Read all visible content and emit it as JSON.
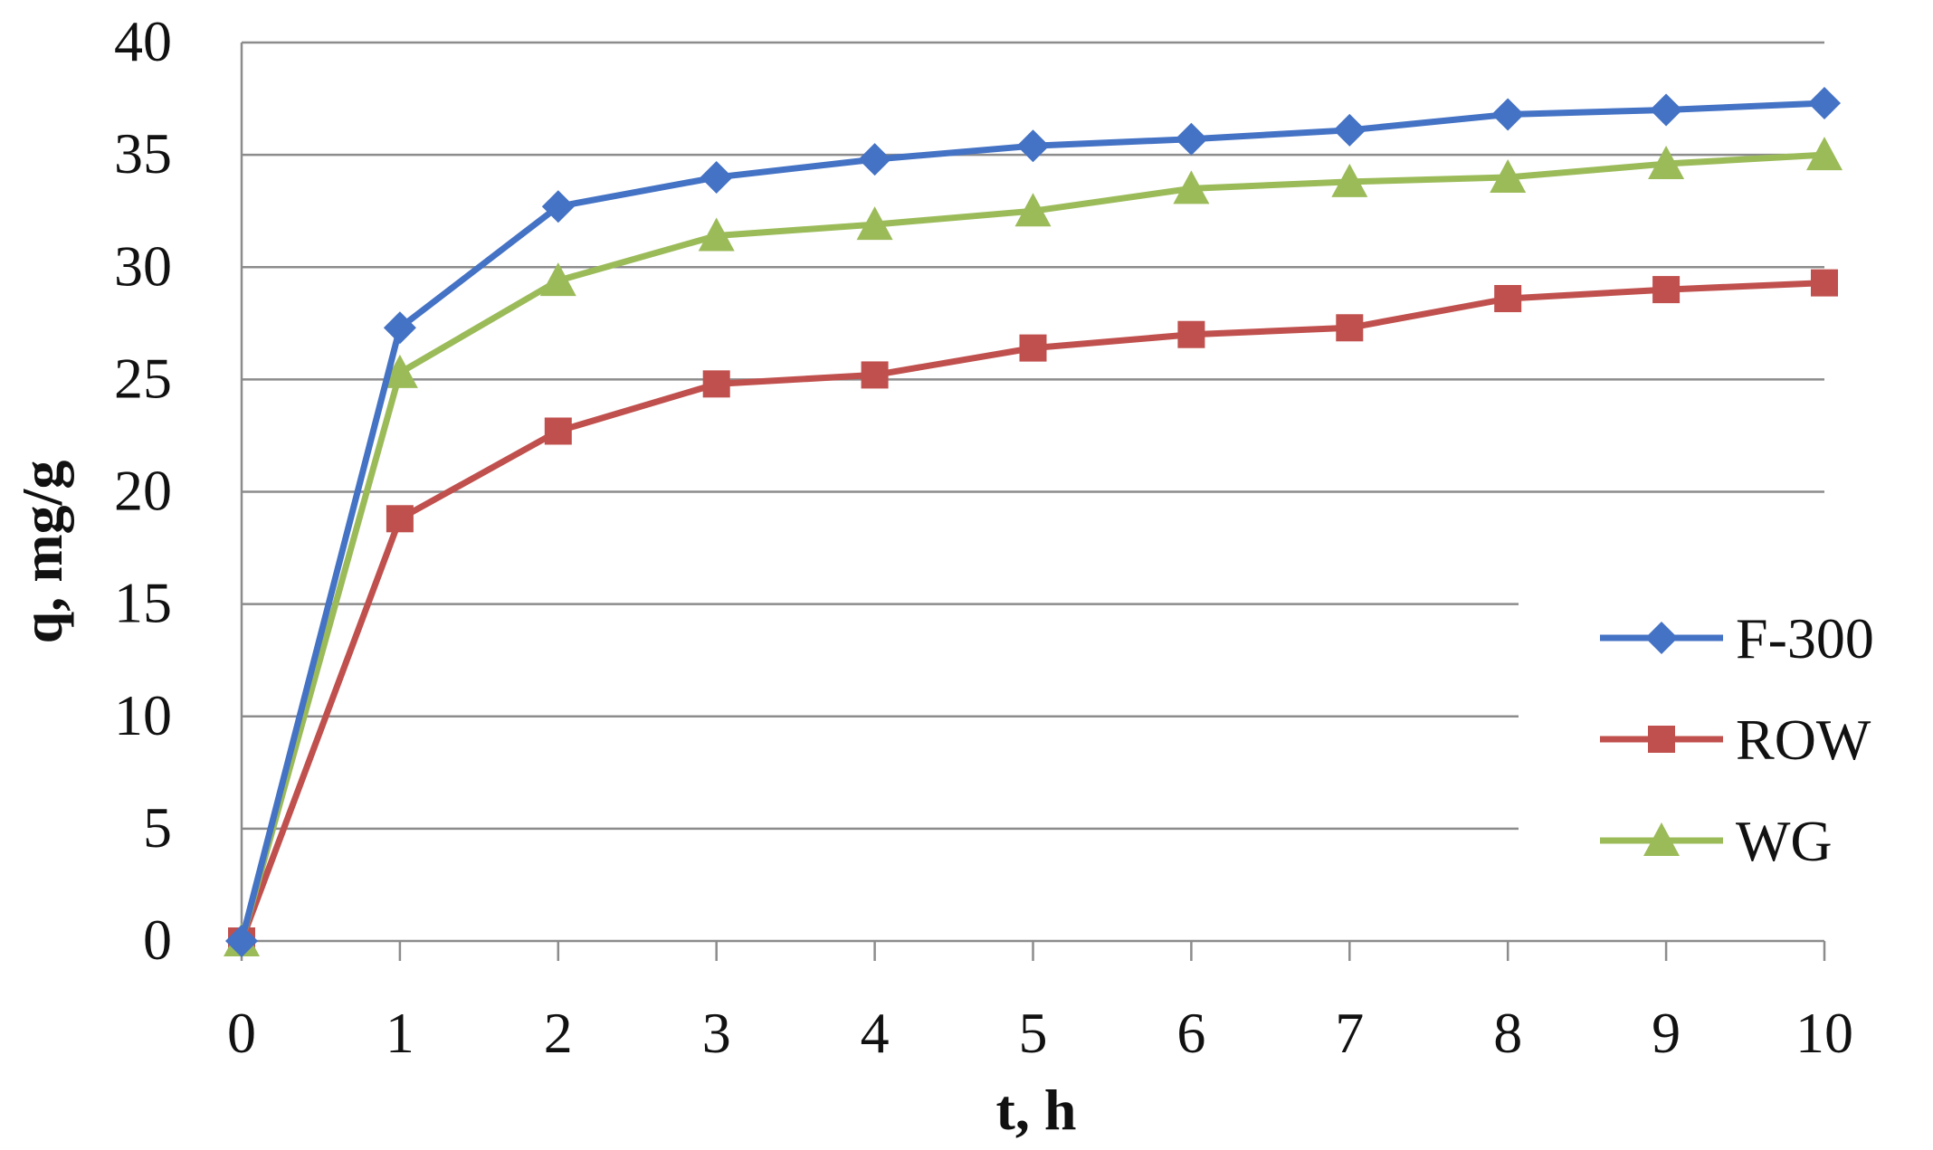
{
  "chart_data": {
    "type": "line",
    "title": "",
    "xlabel": "t, h",
    "ylabel": "q, mg/g",
    "x": [
      0,
      1,
      2,
      3,
      4,
      5,
      6,
      7,
      8,
      9,
      10
    ],
    "xlim": [
      0,
      10
    ],
    "ylim": [
      0,
      40
    ],
    "x_ticks": [
      "0",
      "1",
      "2",
      "3",
      "4",
      "5",
      "6",
      "7",
      "8",
      "9",
      "10"
    ],
    "y_ticks": [
      "0",
      "5",
      "10",
      "15",
      "20",
      "25",
      "30",
      "35",
      "40"
    ],
    "grid": "horizontal",
    "legend_position": "right",
    "series": [
      {
        "name": "F-300",
        "color": "#4472C4",
        "marker": "diamond",
        "values": [
          0,
          27.3,
          32.7,
          34.0,
          34.8,
          35.4,
          35.7,
          36.1,
          36.8,
          37.0,
          37.3
        ]
      },
      {
        "name": "ROW",
        "color": "#C0504D",
        "marker": "square",
        "values": [
          0,
          18.8,
          22.7,
          24.8,
          25.2,
          26.4,
          27.0,
          27.3,
          28.6,
          29.0,
          29.3
        ]
      },
      {
        "name": "WG",
        "color": "#9BBB59",
        "marker": "triangle",
        "values": [
          0,
          25.3,
          29.4,
          31.4,
          31.9,
          32.5,
          33.5,
          33.8,
          34.0,
          34.6,
          35.0
        ]
      }
    ]
  }
}
